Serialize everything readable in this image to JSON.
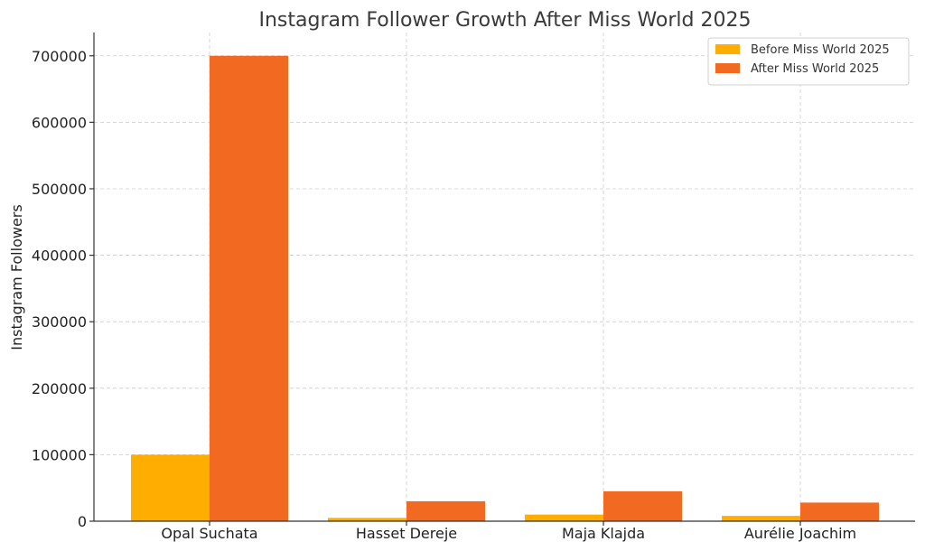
{
  "chart_data": {
    "type": "bar",
    "title": "Instagram Follower Growth After Miss World 2025",
    "xlabel": "",
    "ylabel": "Instagram Followers",
    "categories": [
      "Opal Suchata",
      "Hasset Dereje",
      "Maja Klajda",
      "Aurélie Joachim"
    ],
    "series": [
      {
        "name": "Before Miss World 2025",
        "color": "#FFAE00",
        "values": [
          100000,
          5000,
          10000,
          8000
        ]
      },
      {
        "name": "After Miss World 2025",
        "color": "#F26A21",
        "values": [
          700000,
          30000,
          45000,
          28000
        ]
      }
    ],
    "ylim": [
      0,
      735000
    ],
    "yticks": [
      0,
      100000,
      200000,
      300000,
      400000,
      500000,
      600000,
      700000
    ],
    "ytick_labels": [
      "0",
      "100000",
      "200000",
      "300000",
      "400000",
      "500000",
      "600000",
      "700000"
    ],
    "grid": true,
    "legend_position": "top-right"
  }
}
